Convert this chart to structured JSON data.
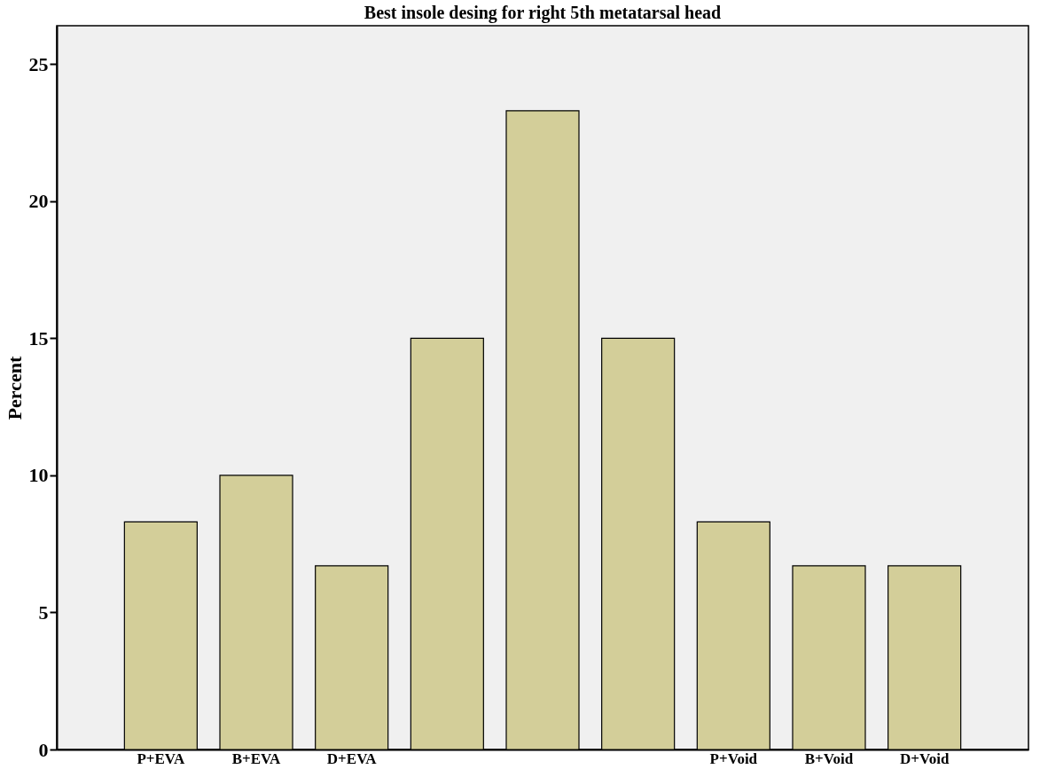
{
  "chart_data": {
    "type": "bar",
    "title": "Best insole desing for right 5th metatarsal head",
    "ylabel": "Percent",
    "categories": [
      "P+EVA",
      "B+EVA",
      "D+EVA",
      null,
      null,
      null,
      "P+Void",
      "B+Void",
      "D+Void"
    ],
    "values": [
      8.3,
      10,
      6.7,
      15,
      23.3,
      15,
      8.3,
      6.7,
      6.7
    ],
    "color": "#d3ce99",
    "ylim": [
      0,
      26.4
    ],
    "yticks": [
      0,
      5,
      10,
      15,
      20,
      25
    ],
    "grid": false
  }
}
